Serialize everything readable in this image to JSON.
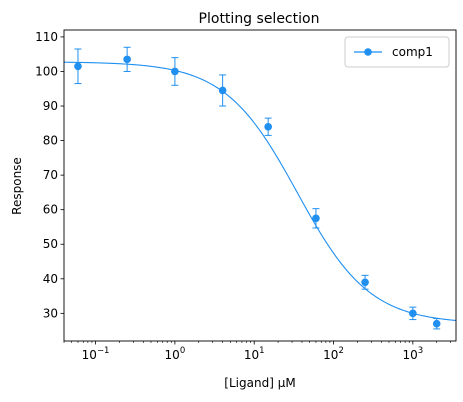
{
  "chart_data": {
    "type": "scatter",
    "title": "Plotting selection",
    "xlabel": "[Ligand] μM",
    "ylabel": "Response",
    "xscale": "log",
    "xlim": [
      0.04,
      3500
    ],
    "ylim": [
      22,
      112
    ],
    "x_ticks": [
      {
        "value": 0.1,
        "base": "10",
        "exp": "−1"
      },
      {
        "value": 1,
        "base": "10",
        "exp": "0"
      },
      {
        "value": 10,
        "base": "10",
        "exp": "1"
      },
      {
        "value": 100,
        "base": "10",
        "exp": "2"
      },
      {
        "value": 1000,
        "base": "10",
        "exp": "3"
      }
    ],
    "y_ticks": [
      30,
      40,
      50,
      60,
      70,
      80,
      90,
      100,
      110
    ],
    "grid": false,
    "legend": "top-right",
    "color": "#1f8ff0",
    "series": [
      {
        "name": "comp1",
        "x": [
          0.06,
          0.25,
          1.0,
          4.0,
          15.0,
          60.0,
          250.0,
          1000.0,
          2000.0
        ],
        "y": [
          101.5,
          103.5,
          100.0,
          94.5,
          84.0,
          57.5,
          39.0,
          30.0,
          27.0
        ],
        "err": [
          5.0,
          3.5,
          4.0,
          4.5,
          2.5,
          2.8,
          2.0,
          1.8,
          1.5
        ],
        "fit": {
          "model": "4PL",
          "top": 102.8,
          "bottom": 27.0,
          "ec50": 35,
          "hill": 0.95
        }
      }
    ]
  }
}
